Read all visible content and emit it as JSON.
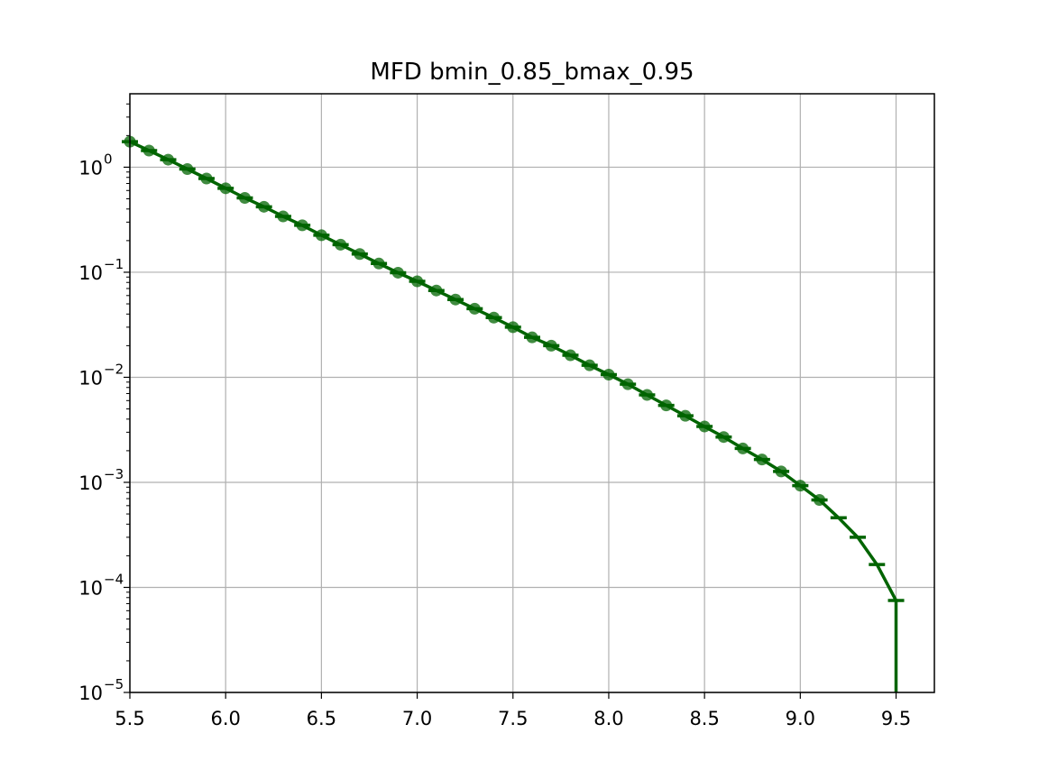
{
  "chart_data": {
    "type": "line",
    "title": "MFD bmin_0.85_bmax_0.95",
    "xlabel": "",
    "ylabel": "",
    "xlim": [
      5.5,
      9.7
    ],
    "ylim": [
      1e-05,
      5
    ],
    "yscale": "log",
    "grid": true,
    "legend": "none",
    "x_ticks": [
      "5.5",
      "6.0",
      "6.5",
      "7.0",
      "7.5",
      "8.0",
      "8.5",
      "9.0",
      "9.5"
    ],
    "y_ticks": [
      {
        "base": "10",
        "exp": "0",
        "value": 1
      },
      {
        "base": "10",
        "exp": "−1",
        "value": 0.1
      },
      {
        "base": "10",
        "exp": "−2",
        "value": 0.01
      },
      {
        "base": "10",
        "exp": "−3",
        "value": 0.001
      },
      {
        "base": "10",
        "exp": "−4",
        "value": 0.0001
      },
      {
        "base": "10",
        "exp": "−5",
        "value": 1e-05
      }
    ],
    "series": [
      {
        "color": "#006400",
        "x": [
          5.5,
          5.6,
          5.7,
          5.8,
          5.9,
          6.0,
          6.1,
          6.2,
          6.3,
          6.4,
          6.5,
          6.6,
          6.7,
          6.8,
          6.9,
          7.0,
          7.1,
          7.2,
          7.3,
          7.4,
          7.5,
          7.6,
          7.7,
          7.8,
          7.9,
          8.0,
          8.1,
          8.2,
          8.3,
          8.4,
          8.5,
          8.6,
          8.7,
          8.8,
          8.9,
          9.0,
          9.1,
          9.2,
          9.3,
          9.4,
          9.5,
          9.5
        ],
        "y": [
          1.75,
          1.44,
          1.18,
          0.96,
          0.78,
          0.63,
          0.51,
          0.42,
          0.34,
          0.28,
          0.225,
          0.183,
          0.149,
          0.121,
          0.099,
          0.082,
          0.067,
          0.055,
          0.045,
          0.037,
          0.03,
          0.024,
          0.02,
          0.0162,
          0.013,
          0.0106,
          0.0086,
          0.0068,
          0.0054,
          0.0043,
          0.0034,
          0.0027,
          0.0021,
          0.00165,
          0.00127,
          0.00093,
          0.00068,
          0.00046,
          0.0003,
          0.000165,
          7.5e-05,
          1e-05
        ]
      }
    ]
  }
}
